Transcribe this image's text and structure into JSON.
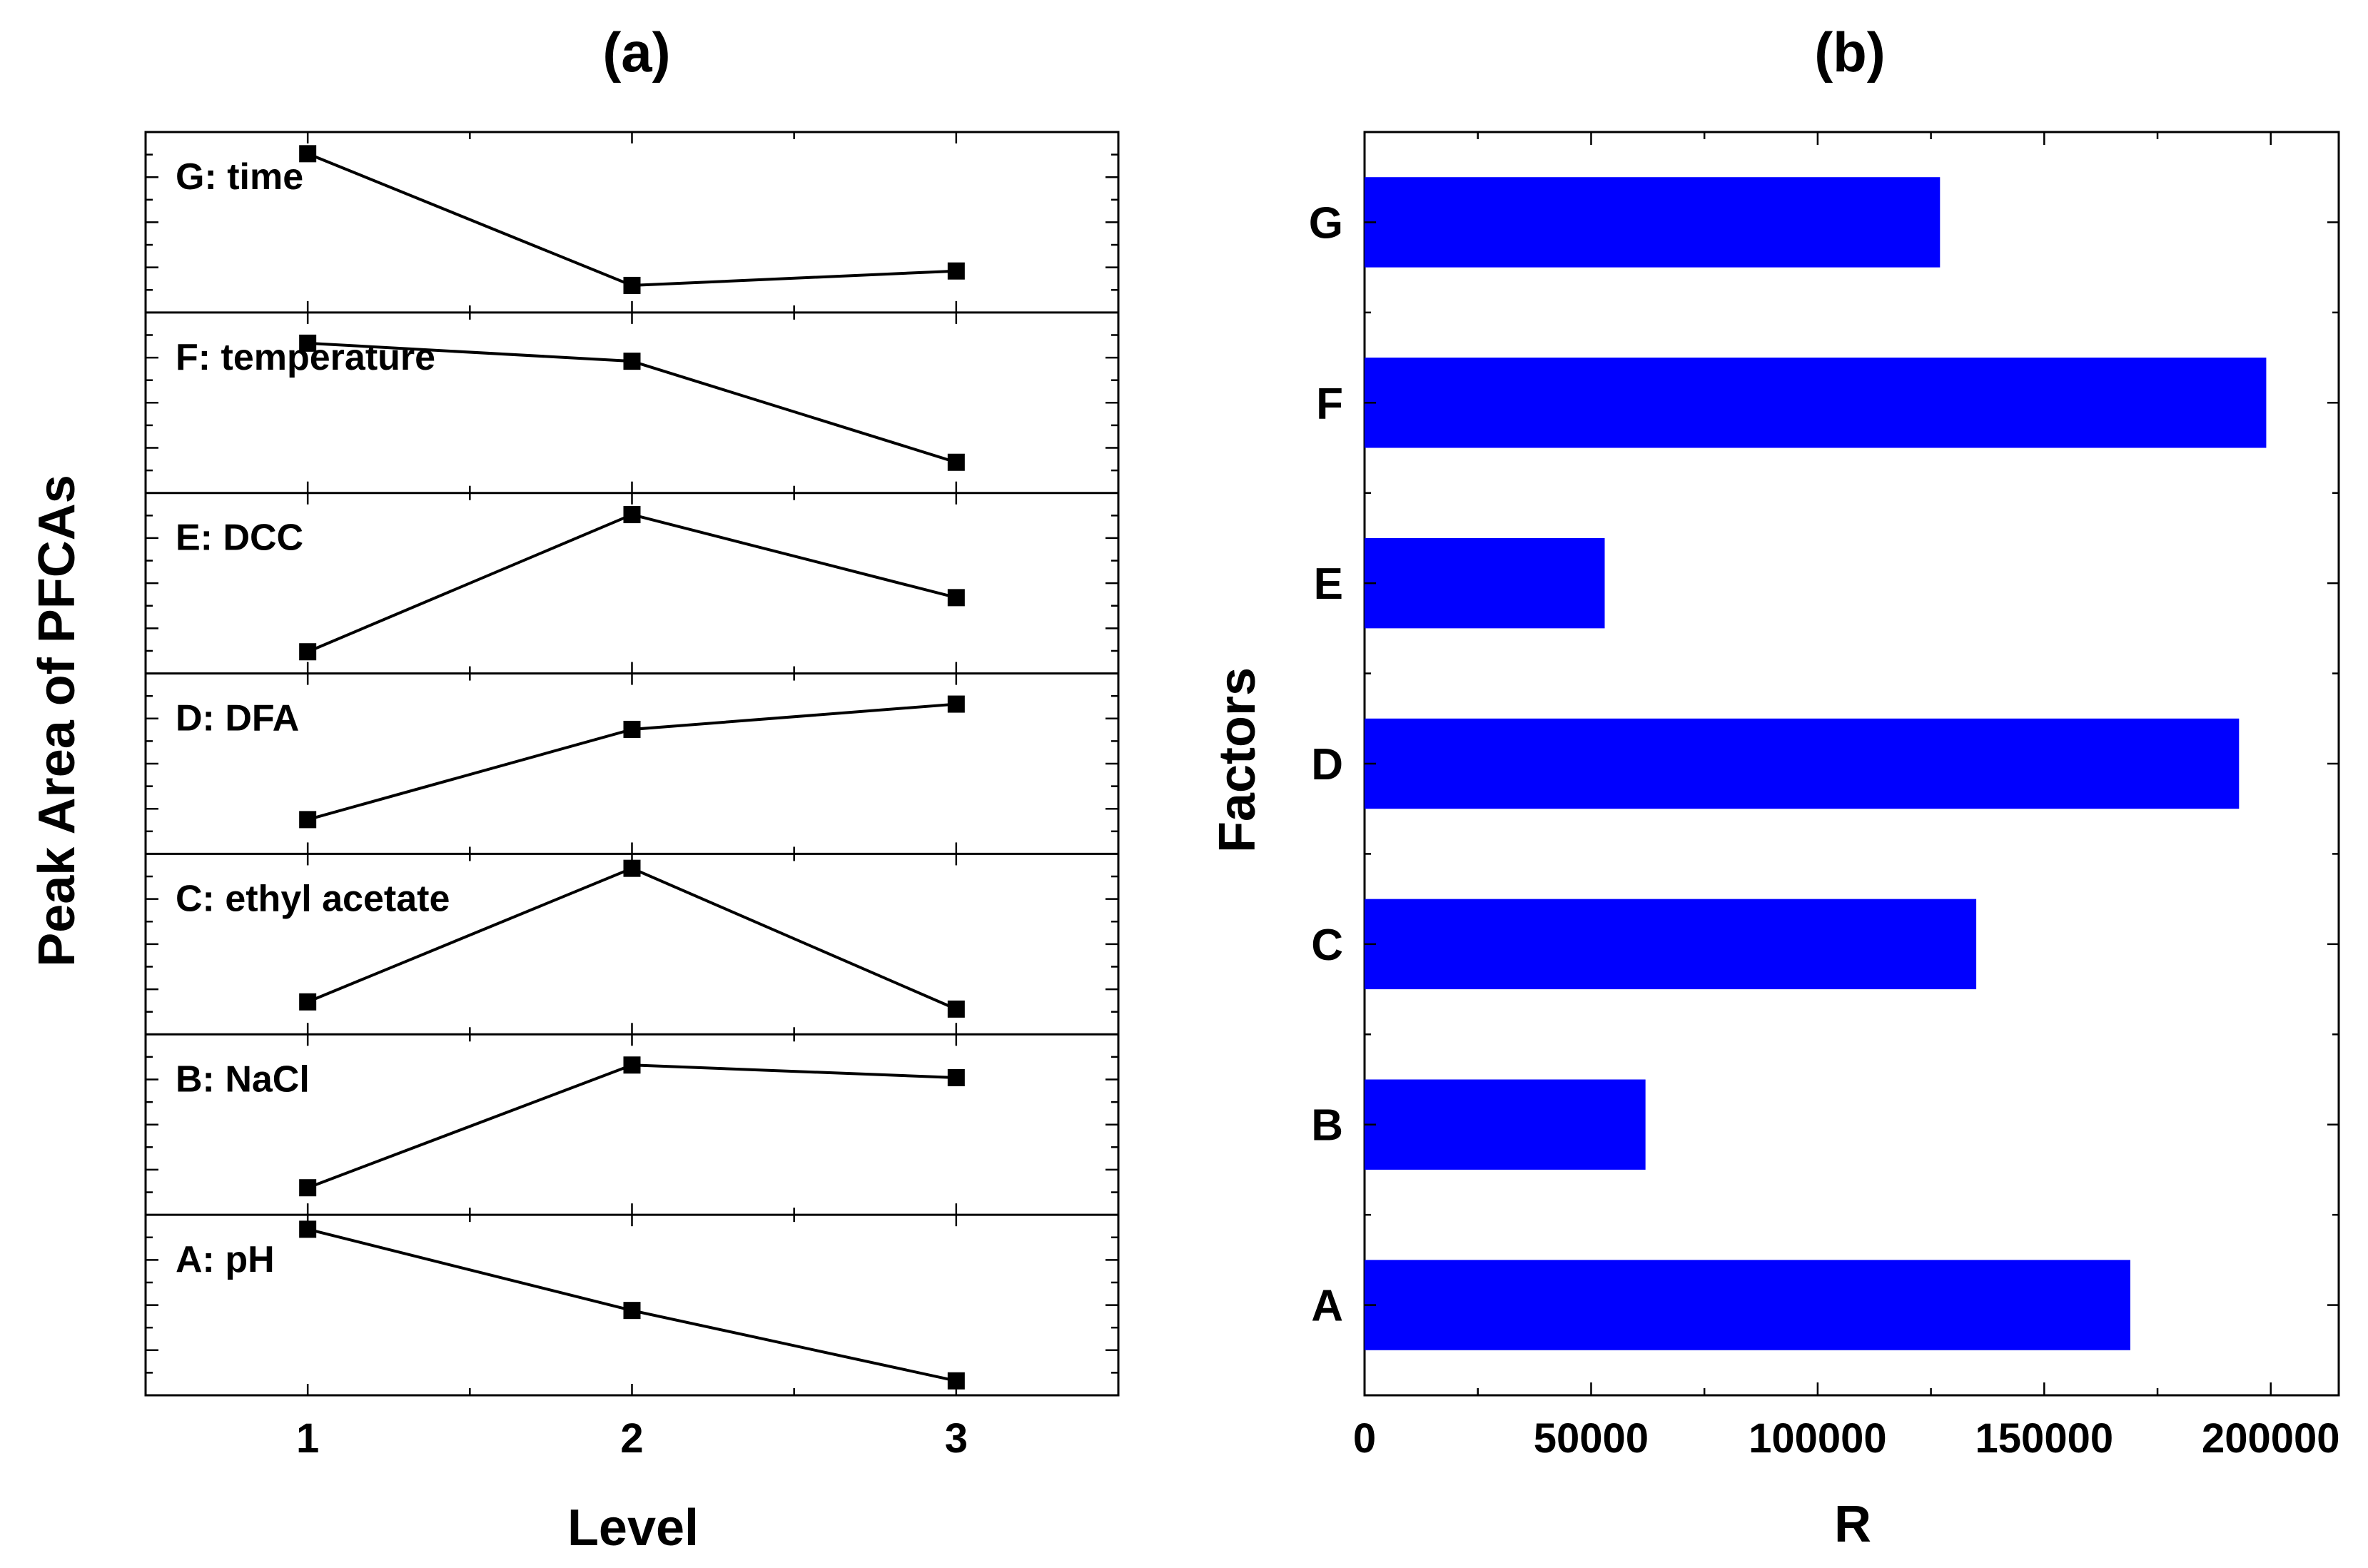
{
  "colors": {
    "bar": "#0000ff",
    "line": "#000000",
    "background": "#ffffff"
  },
  "chart_data": [
    {
      "type": "line",
      "panel_label": "(a)",
      "xlabel": "Level",
      "ylabel": "Peak Area of PFCAs",
      "x": [
        1,
        2,
        3
      ],
      "x_tick_labels": [
        "1",
        "2",
        "3"
      ],
      "xlim": [
        0.5,
        3.5
      ],
      "ylim": [
        0,
        1
      ],
      "y_note": "each sub-panel normalized 0-1 (no y tick labels shown)",
      "series": [
        {
          "name": "G: time",
          "values": [
            0.88,
            0.15,
            0.23
          ]
        },
        {
          "name": "F: temperature",
          "values": [
            0.83,
            0.73,
            0.17
          ]
        },
        {
          "name": "E: DCC",
          "values": [
            0.12,
            0.88,
            0.42
          ]
        },
        {
          "name": "D: DFA",
          "values": [
            0.19,
            0.69,
            0.83
          ]
        },
        {
          "name": "C: ethyl acetate",
          "values": [
            0.18,
            0.92,
            0.14
          ]
        },
        {
          "name": "B: NaCl",
          "values": [
            0.15,
            0.83,
            0.76
          ]
        },
        {
          "name": "A: pH",
          "values": [
            0.92,
            0.47,
            0.08
          ]
        }
      ]
    },
    {
      "type": "bar",
      "orientation": "horizontal",
      "panel_label": "(b)",
      "xlabel": "R",
      "ylabel": "Factors",
      "categories": [
        "G",
        "F",
        "E",
        "D",
        "C",
        "B",
        "A"
      ],
      "values": [
        127000,
        199000,
        53000,
        193000,
        135000,
        62000,
        169000
      ],
      "xlim": [
        0,
        215000
      ],
      "x_ticks": [
        0,
        50000,
        100000,
        150000,
        200000
      ],
      "x_tick_labels": [
        "0",
        "50000",
        "100000",
        "150000",
        "200000"
      ]
    }
  ]
}
